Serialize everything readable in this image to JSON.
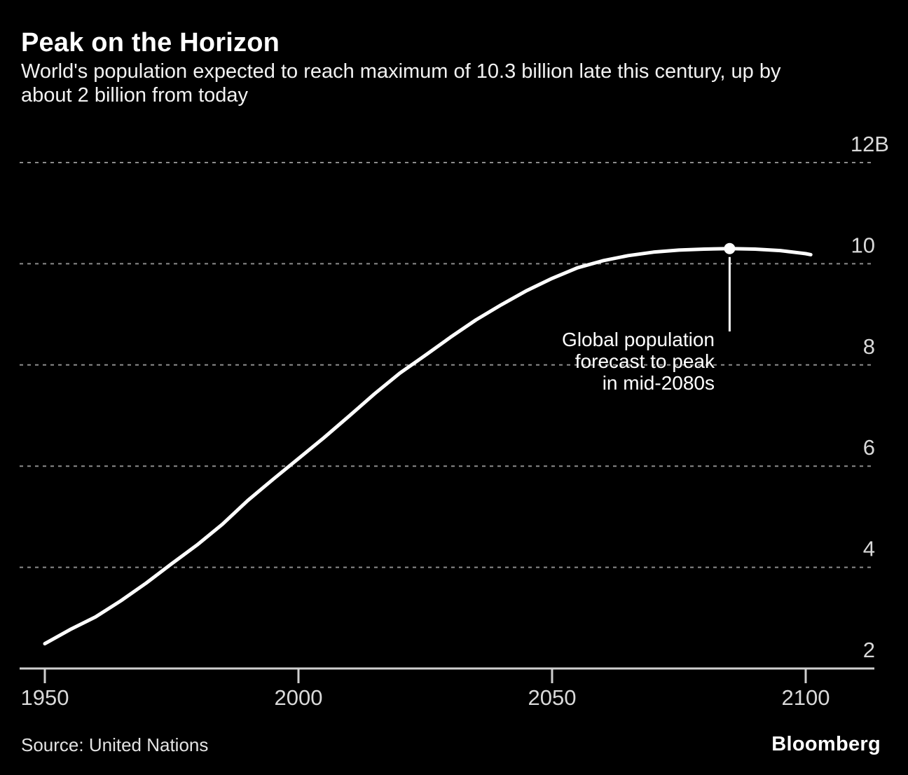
{
  "header": {
    "title": "Peak on the Horizon",
    "subtitle_lines": [
      "World's population expected to reach maximum of 10.3 billion late this century, up by",
      "about 2 billion from today"
    ]
  },
  "chart_data": {
    "type": "line",
    "title": "Peak on the Horizon",
    "subtitle": "World's population expected to reach maximum of 10.3 billion late this century, up by about 2 billion from today",
    "x": [
      1950,
      1955,
      1960,
      1965,
      1970,
      1975,
      1980,
      1985,
      1990,
      1995,
      2000,
      2005,
      2010,
      2015,
      2020,
      2025,
      2030,
      2035,
      2040,
      2045,
      2050,
      2055,
      2060,
      2065,
      2070,
      2075,
      2080,
      2085,
      2090,
      2095,
      2100,
      2101
    ],
    "values": [
      2.49,
      2.77,
      3.02,
      3.34,
      3.69,
      4.07,
      4.44,
      4.85,
      5.32,
      5.74,
      6.15,
      6.56,
      6.99,
      7.43,
      7.84,
      8.19,
      8.55,
      8.89,
      9.19,
      9.47,
      9.71,
      9.92,
      10.06,
      10.16,
      10.23,
      10.27,
      10.29,
      10.3,
      10.29,
      10.26,
      10.2,
      10.18
    ],
    "xlim": [
      1950,
      2101
    ],
    "ylim": [
      2,
      12
    ],
    "xticks": [
      1950,
      2000,
      2050,
      2100
    ],
    "yticks": [
      {
        "value": 2,
        "label": "2"
      },
      {
        "value": 4,
        "label": "4"
      },
      {
        "value": 6,
        "label": "6"
      },
      {
        "value": 8,
        "label": "8"
      },
      {
        "value": 10,
        "label": "10"
      },
      {
        "value": 12,
        "label": "12B"
      }
    ],
    "grid": "horizontal-dashed",
    "legend": "none",
    "annotation": {
      "lines": [
        "Global population",
        "forecast to peak",
        "in mid-2080s"
      ]
    },
    "peak_marker": {
      "year": 2085,
      "value": 10.3
    }
  },
  "footer": {
    "source": "Source: United Nations",
    "logo": "Bloomberg"
  },
  "colors": {
    "background": "#000000",
    "line": "#ffffff",
    "grid": "#8c8c8c",
    "axis": "#cfcfcf",
    "tick_label": "#d9d9d9",
    "annotation": "#ffffff"
  }
}
